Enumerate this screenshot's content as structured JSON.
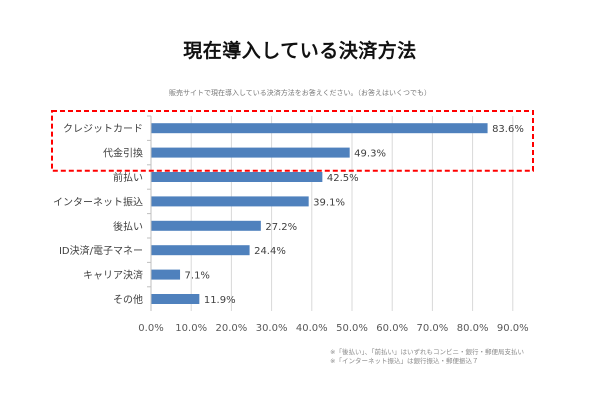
{
  "chart_data": {
    "type": "bar",
    "orientation": "horizontal",
    "title": "現在導入している決済方法",
    "subtitle": "販売サイトで現在導入している決済方法をお答えください。（お答えはいくつでも）",
    "categories": [
      "クレジットカード",
      "代金引換",
      "前払い",
      "インターネット振込",
      "後払い",
      "ID決済/電子マネー",
      "キャリア決済",
      "その他"
    ],
    "values": [
      83.6,
      49.3,
      42.5,
      39.1,
      27.2,
      24.4,
      7.1,
      11.9
    ],
    "value_labels": [
      "83.6%",
      "49.3%",
      "42.5%",
      "39.1%",
      "27.2%",
      "24.4%",
      "7.1%",
      "11.9%"
    ],
    "xlim": [
      0,
      90
    ],
    "xticks": [
      0,
      10,
      20,
      30,
      40,
      50,
      60,
      70,
      80,
      90
    ],
    "xtick_labels": [
      "0.0%",
      "10.0%",
      "20.0%",
      "30.0%",
      "40.0%",
      "50.0%",
      "60.0%",
      "70.0%",
      "80.0%",
      "90.0%"
    ],
    "xlabel": "",
    "ylabel": "",
    "grid": "vertical",
    "legend": "none",
    "bar_color": "#4f81bd",
    "highlight": {
      "categories": [
        "クレジットカード",
        "代金引換"
      ],
      "style": "red-dashed-box",
      "color": "#ff0000"
    },
    "notes": [
      "※「後払い」、「前払い」はいずれもコンビニ・銀行・郵便局支払い",
      "※「インターネット振込」は銀行振込・郵便振込７"
    ]
  }
}
